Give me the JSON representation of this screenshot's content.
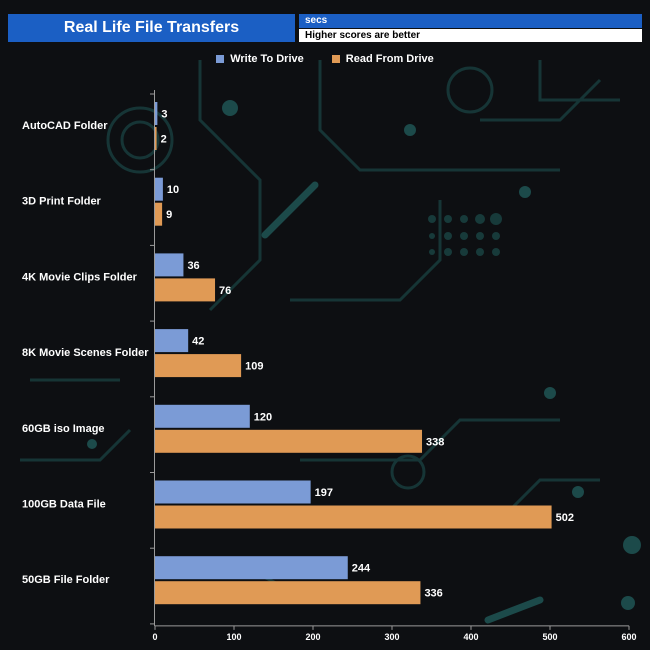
{
  "header": {
    "title": "Real Life File Transfers",
    "unit": "secs",
    "note": "Higher scores are better"
  },
  "legend": {
    "write_label": "Write To  Drive",
    "read_label": "Read From  Drive"
  },
  "colors": {
    "write": "#7b9bd6",
    "read": "#e09a55",
    "accent": "#1b5fc4"
  },
  "chart_data": {
    "type": "bar",
    "orientation": "horizontal",
    "title": "Real Life File Transfers",
    "xlabel": "secs",
    "ylabel": "",
    "xlim": [
      0,
      600
    ],
    "ticks": [
      0,
      100,
      200,
      300,
      400,
      500,
      600
    ],
    "legend_position": "top-center",
    "categories": [
      "AutoCAD Folder",
      "3D Print Folder",
      "4K Movie Clips Folder",
      "8K Movie Scenes Folder",
      "60GB iso Image",
      "100GB Data File",
      "50GB File Folder"
    ],
    "series": [
      {
        "name": "Write To  Drive",
        "values": [
          3,
          10,
          36,
          42,
          120,
          197,
          244
        ]
      },
      {
        "name": "Read From  Drive",
        "values": [
          2,
          9,
          76,
          109,
          338,
          502,
          336
        ]
      }
    ]
  }
}
